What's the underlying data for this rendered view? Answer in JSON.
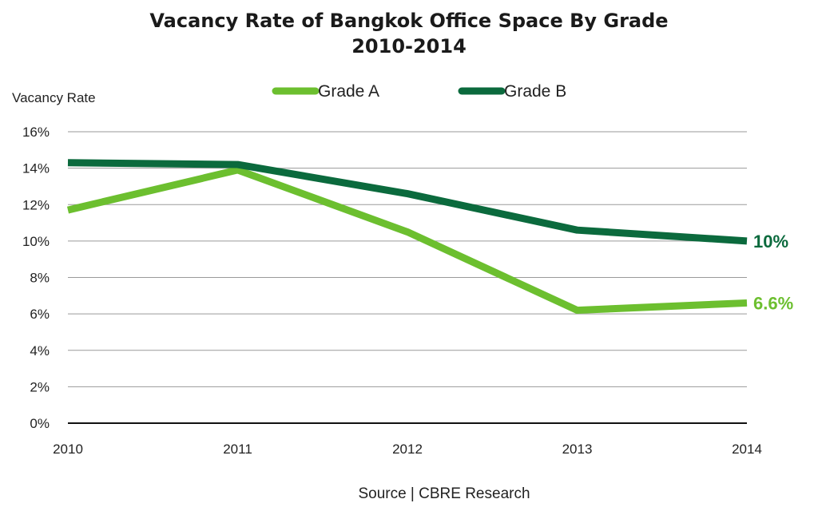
{
  "chart_data": {
    "type": "line",
    "title": "Vacancy Rate of Bangkok Office Space By Grade",
    "subtitle": "2010-2014",
    "ylabel": "Vacancy Rate",
    "xlabel": "",
    "x": [
      "2010",
      "2011",
      "2012",
      "2013",
      "2014"
    ],
    "ylim": [
      0,
      16
    ],
    "yticks": [
      "0%",
      "2%",
      "4%",
      "6%",
      "8%",
      "10%",
      "12%",
      "14%",
      "16%"
    ],
    "grid": true,
    "legend_position": "top-center",
    "series": [
      {
        "name": "Grade A",
        "color": "#6cbf2f",
        "values": [
          11.7,
          13.9,
          10.5,
          6.2,
          6.6
        ],
        "end_label": "6.6%"
      },
      {
        "name": "Grade B",
        "color": "#0b6a3d",
        "values": [
          14.3,
          14.2,
          12.6,
          10.6,
          10.0
        ],
        "end_label": "10%"
      }
    ],
    "source": "Source | CBRE Research"
  }
}
